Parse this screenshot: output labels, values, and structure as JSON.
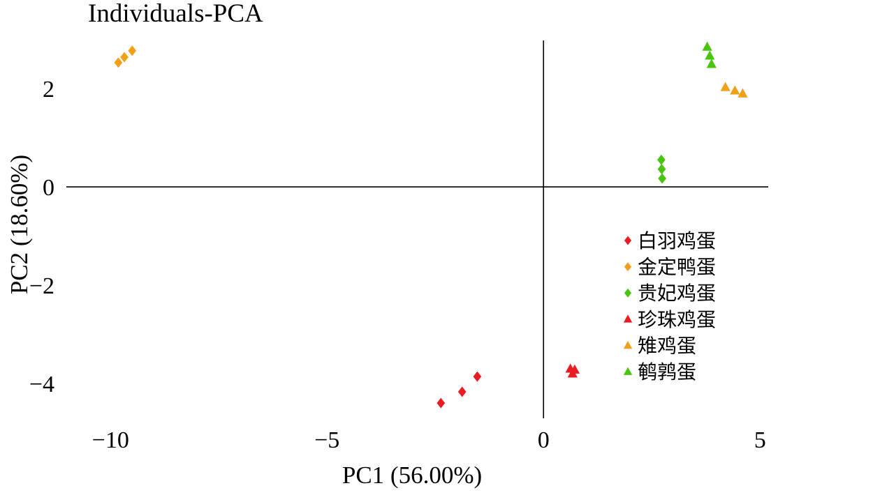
{
  "chart_data": {
    "type": "scatter",
    "title": "Individuals-PCA",
    "xlabel": "PC1 (56.00%)",
    "ylabel": "PC2 (18.60%)",
    "xlim": [
      -11.02,
      5.19
    ],
    "ylim": [
      -4.71,
      2.98
    ],
    "x_ticks": [
      -10,
      -5,
      0,
      5
    ],
    "y_ticks": [
      2,
      0,
      -2,
      -4
    ],
    "grid": false,
    "frame": "none",
    "axes_cross_at_origin": true,
    "legend_position": "right",
    "axis_color": "#000000",
    "series": [
      {
        "name": "白羽鸡蛋",
        "marker": "diamond",
        "color": "#e91c23",
        "points": [
          [
            -2.37,
            -4.4
          ],
          [
            -1.88,
            -4.17
          ],
          [
            -1.53,
            -3.86
          ]
        ]
      },
      {
        "name": "金定鸭蛋",
        "marker": "diamond",
        "color": "#f1a019",
        "points": [
          [
            -9.82,
            2.53
          ],
          [
            -9.68,
            2.64
          ],
          [
            -9.5,
            2.77
          ]
        ]
      },
      {
        "name": "贵妃鸡蛋",
        "marker": "diamond",
        "color": "#49c40f",
        "points": [
          [
            2.72,
            0.55
          ],
          [
            2.73,
            0.36
          ],
          [
            2.74,
            0.17
          ]
        ]
      },
      {
        "name": "珍珠鸡蛋",
        "marker": "triangle",
        "color": "#e91c23",
        "points": [
          [
            0.62,
            -3.7
          ],
          [
            0.72,
            -3.72
          ],
          [
            0.67,
            -3.8
          ]
        ]
      },
      {
        "name": "雉鸡蛋",
        "marker": "triangle",
        "color": "#f1a019",
        "points": [
          [
            4.2,
            2.03
          ],
          [
            4.42,
            1.96
          ],
          [
            4.6,
            1.9
          ]
        ]
      },
      {
        "name": "鹌鹑蛋",
        "marker": "triangle",
        "color": "#49c40f",
        "points": [
          [
            3.78,
            2.85
          ],
          [
            3.84,
            2.67
          ],
          [
            3.88,
            2.5
          ]
        ]
      }
    ]
  }
}
